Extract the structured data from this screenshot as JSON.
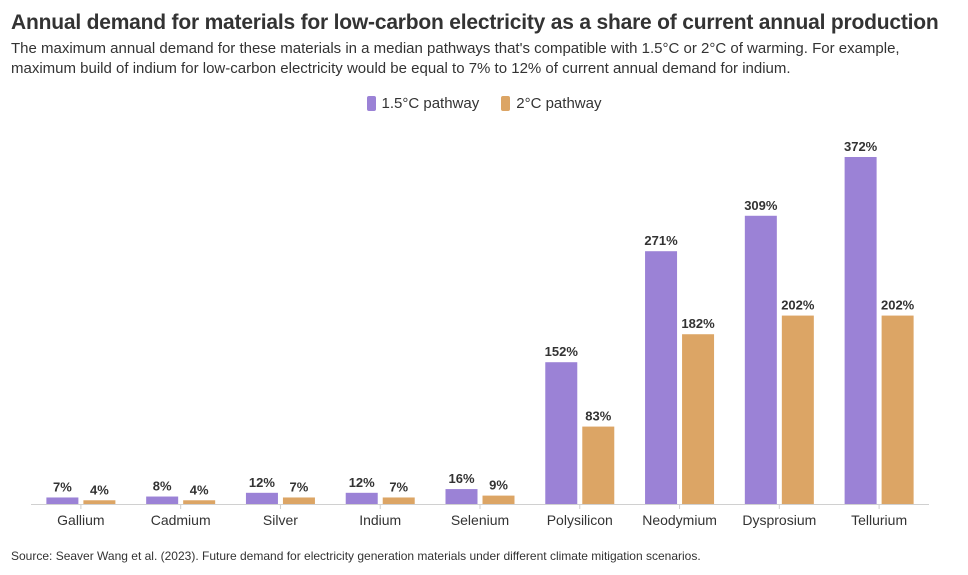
{
  "header": {
    "title": "Annual demand for materials for low-carbon electricity as a share of current annual production",
    "subtitle": "The maximum annual demand for these materials in a median pathways that's compatible with 1.5°C or 2°C of warming. For example, maximum build of indium for low-carbon electricity would be equal to 7% to 12% of current annual demand for indium."
  },
  "footer": {
    "source": "Source: Seaver Wang et al. (2023). Future demand for electricity generation materials under different climate mitigation scenarios."
  },
  "chart_data": {
    "type": "bar",
    "categories": [
      "Gallium",
      "Cadmium",
      "Silver",
      "Indium",
      "Selenium",
      "Polysilicon",
      "Neodymium",
      "Dysprosium",
      "Tellurium"
    ],
    "series": [
      {
        "name": "1.5°C pathway",
        "color": "#9b82d6",
        "values": [
          7,
          8,
          12,
          12,
          16,
          152,
          271,
          309,
          372
        ],
        "labels": [
          "7%",
          "8%",
          "12%",
          "12%",
          "16%",
          "152%",
          "271%",
          "309%",
          "372%"
        ]
      },
      {
        "name": "2°C pathway",
        "color": "#dca565",
        "values": [
          4,
          4,
          7,
          7,
          9,
          83,
          182,
          202,
          202
        ],
        "labels": [
          "4%",
          "4%",
          "7%",
          "7%",
          "9%",
          "83%",
          "182%",
          "202%",
          "202%"
        ]
      }
    ],
    "ylim": [
      0,
      372
    ],
    "grid": false,
    "legend_position": "top-center",
    "value_format": "percent"
  }
}
